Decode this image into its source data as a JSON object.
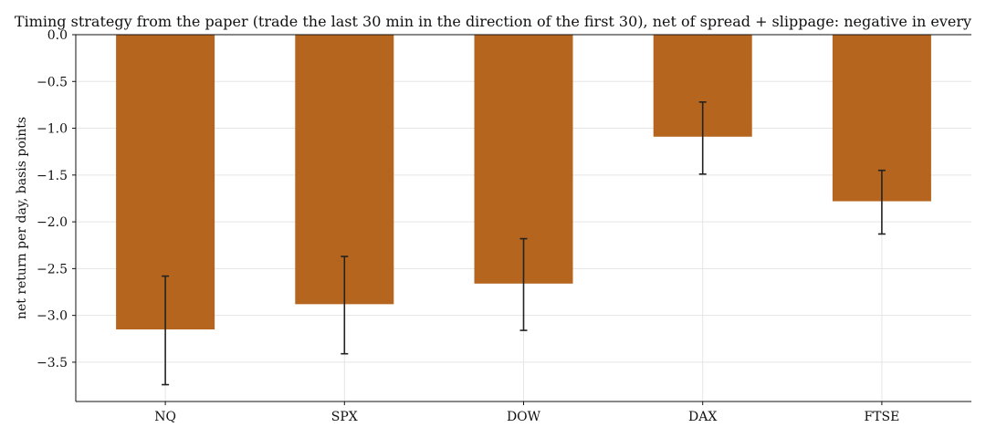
{
  "chart_data": {
    "type": "bar",
    "title": "Timing strategy from the paper (trade the last 30 min in the direction of the first 30), net of spread + slippage: negative in every",
    "xlabel": "",
    "ylabel": "net return per day, basis points",
    "categories": [
      "NQ",
      "SPX",
      "DOW",
      "DAX",
      "FTSE"
    ],
    "values": [
      -3.15,
      -2.88,
      -2.66,
      -1.09,
      -1.78
    ],
    "error_low": [
      -3.74,
      -3.41,
      -3.16,
      -1.49,
      -2.13
    ],
    "error_high": [
      -2.58,
      -2.37,
      -2.18,
      -0.72,
      -1.45
    ],
    "ylim": [
      -3.92,
      0.0
    ],
    "yticks": [
      0.0,
      -0.5,
      -1.0,
      -1.5,
      -2.0,
      -2.5,
      -3.0,
      -3.5
    ],
    "ytick_labels": [
      "0.0",
      "−0.5",
      "−1.0",
      "−1.5",
      "−2.0",
      "−2.5",
      "−3.0",
      "−3.5"
    ],
    "grid": true,
    "colors": {
      "bar": "#b5651d",
      "error": "#222222",
      "grid": "#e5e5e5",
      "axis": "#111111"
    }
  }
}
